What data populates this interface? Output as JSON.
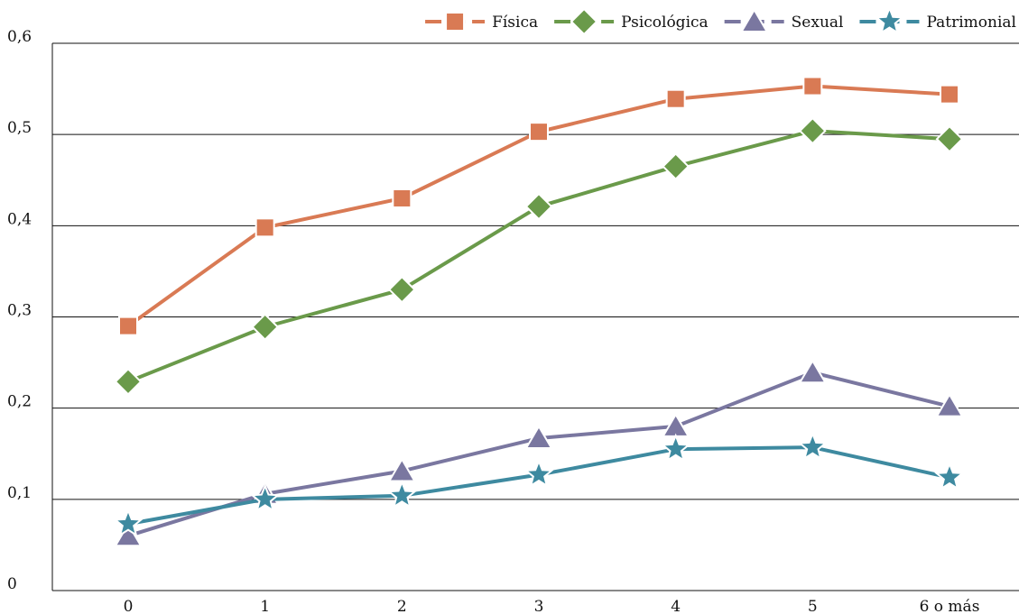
{
  "chart_data": {
    "type": "line",
    "categories": [
      "0",
      "1",
      "2",
      "3",
      "4",
      "5",
      "6 o más"
    ],
    "y_tick_labels": [
      "0",
      "0,1",
      "0,2",
      "0,3",
      "0,4",
      "0,5",
      "0,6"
    ],
    "ylim": [
      0,
      0.6
    ],
    "grid": true,
    "legend_position": "top-right",
    "series": [
      {
        "name": "Física",
        "color": "#d97a54",
        "marker": "square",
        "values": [
          0.29,
          0.398,
          0.43,
          0.503,
          0.539,
          0.553,
          0.544
        ]
      },
      {
        "name": "Psicológica",
        "color": "#6a9a4a",
        "marker": "diamond",
        "values": [
          0.229,
          0.289,
          0.33,
          0.421,
          0.465,
          0.504,
          0.495
        ]
      },
      {
        "name": "Sexual",
        "color": "#7a77a0",
        "marker": "triangle",
        "values": [
          0.06,
          0.106,
          0.131,
          0.167,
          0.18,
          0.239,
          0.202
        ]
      },
      {
        "name": "Patrimonial",
        "color": "#3e8aa0",
        "marker": "star",
        "values": [
          0.073,
          0.1,
          0.104,
          0.127,
          0.155,
          0.157,
          0.124
        ]
      }
    ]
  }
}
